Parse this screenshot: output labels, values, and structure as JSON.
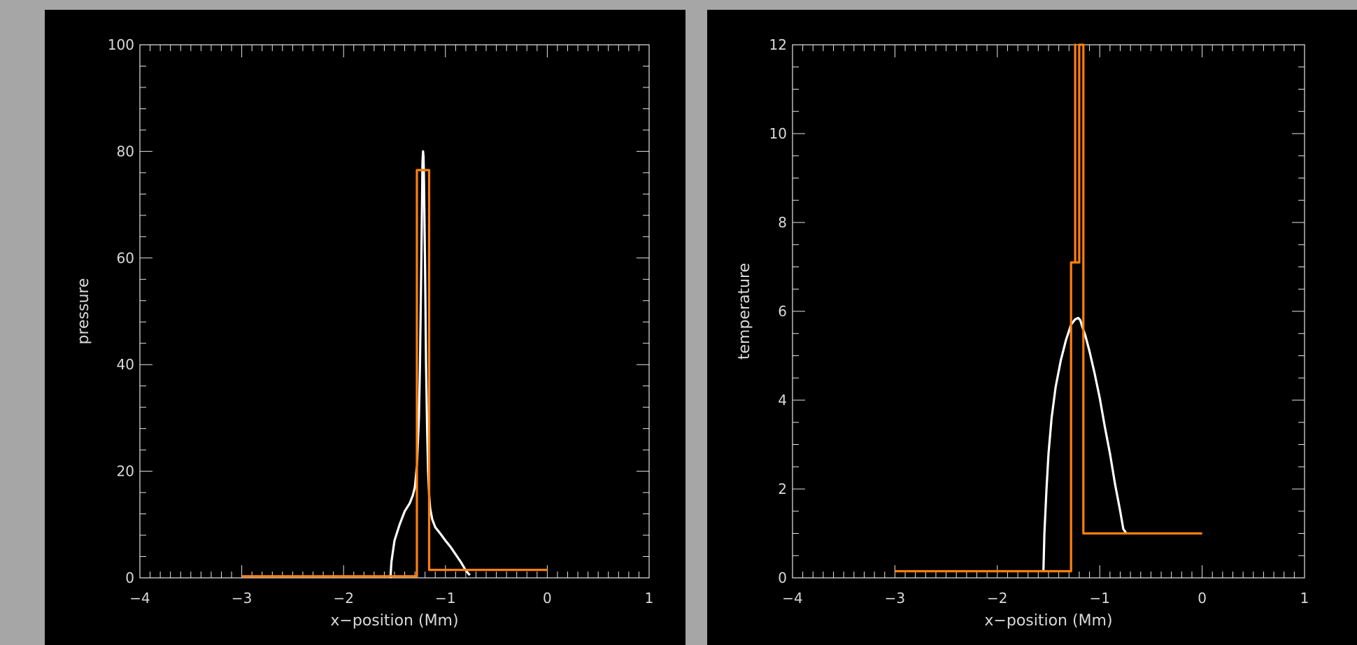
{
  "colors": {
    "window_bg": "#a6a6a6",
    "plot_bg": "#000000",
    "axis": "#e6e6e6",
    "white_series": "#ffffff",
    "orange_series": "#ff7f0e"
  },
  "chart_data": [
    {
      "type": "line",
      "xlabel": "x−position (Mm)",
      "ylabel": "pressure",
      "xlim": [
        -4,
        1
      ],
      "ylim": [
        0,
        100
      ],
      "xticks": [
        -4,
        -3,
        -2,
        -1,
        0,
        1
      ],
      "xtick_labels": [
        "−4",
        "−3",
        "−2",
        "−1",
        "0",
        "1"
      ],
      "yticks": [
        0,
        20,
        40,
        60,
        80,
        100
      ],
      "ytick_labels": [
        "0",
        "20",
        "40",
        "60",
        "80",
        "100"
      ],
      "grid": false,
      "series": [
        {
          "color": "white",
          "x": [
            -1.54,
            -1.53,
            -1.5,
            -1.45,
            -1.4,
            -1.35,
            -1.32,
            -1.3,
            -1.28,
            -1.26,
            -1.25,
            -1.24,
            -1.23,
            -1.225,
            -1.22,
            -1.215,
            -1.21,
            -1.2,
            -1.19,
            -1.18,
            -1.17,
            -1.16,
            -1.15,
            -1.13,
            -1.1,
            -1.05,
            -1.0,
            -0.95,
            -0.9,
            -0.85,
            -0.8,
            -0.76
          ],
          "y": [
            0,
            3,
            7,
            10,
            12.5,
            14,
            15.5,
            17,
            21,
            30,
            40,
            55,
            70,
            78,
            80,
            79,
            74,
            58,
            40,
            28,
            20,
            15.5,
            13,
            11,
            9.5,
            8.3,
            7,
            5.8,
            4.4,
            3,
            1.4,
            0.5
          ]
        },
        {
          "color": "orange",
          "x": [
            -3.0,
            -1.28,
            -1.28,
            -1.16,
            -1.16,
            0.0
          ],
          "y": [
            0.3,
            0.3,
            76.5,
            76.5,
            1.5,
            1.5
          ]
        }
      ]
    },
    {
      "type": "line",
      "xlabel": "x−position (Mm)",
      "ylabel": "temperature",
      "xlim": [
        -4,
        1
      ],
      "ylim": [
        0,
        12
      ],
      "xticks": [
        -4,
        -3,
        -2,
        -1,
        0,
        1
      ],
      "xtick_labels": [
        "−4",
        "−3",
        "−2",
        "−1",
        "0",
        "1"
      ],
      "yticks": [
        0,
        2,
        4,
        6,
        8,
        10,
        12
      ],
      "ytick_labels": [
        "0",
        "2",
        "4",
        "6",
        "8",
        "10",
        "12"
      ],
      "grid": false,
      "series": [
        {
          "color": "white",
          "x": [
            -1.55,
            -1.54,
            -1.52,
            -1.5,
            -1.47,
            -1.43,
            -1.38,
            -1.33,
            -1.28,
            -1.24,
            -1.21,
            -1.19,
            -1.17,
            -1.14,
            -1.1,
            -1.05,
            -1.0,
            -0.95,
            -0.9,
            -0.85,
            -0.8,
            -0.77,
            -0.74
          ],
          "y": [
            0.15,
            1.0,
            2.0,
            2.8,
            3.6,
            4.3,
            4.9,
            5.35,
            5.7,
            5.82,
            5.85,
            5.8,
            5.65,
            5.45,
            5.1,
            4.6,
            4.05,
            3.4,
            2.8,
            2.1,
            1.5,
            1.1,
            1.0
          ]
        },
        {
          "color": "orange",
          "x": [
            -3.0,
            -1.28,
            -1.28,
            -1.24,
            -1.24,
            -1.24,
            -1.24,
            -1.2,
            -1.2,
            -1.16,
            -1.16,
            0.0
          ],
          "y": [
            0.15,
            0.15,
            7.1,
            7.1,
            12.0,
            12.0,
            7.1,
            7.1,
            12.0,
            12.0,
            1.0,
            1.0
          ]
        }
      ]
    }
  ]
}
